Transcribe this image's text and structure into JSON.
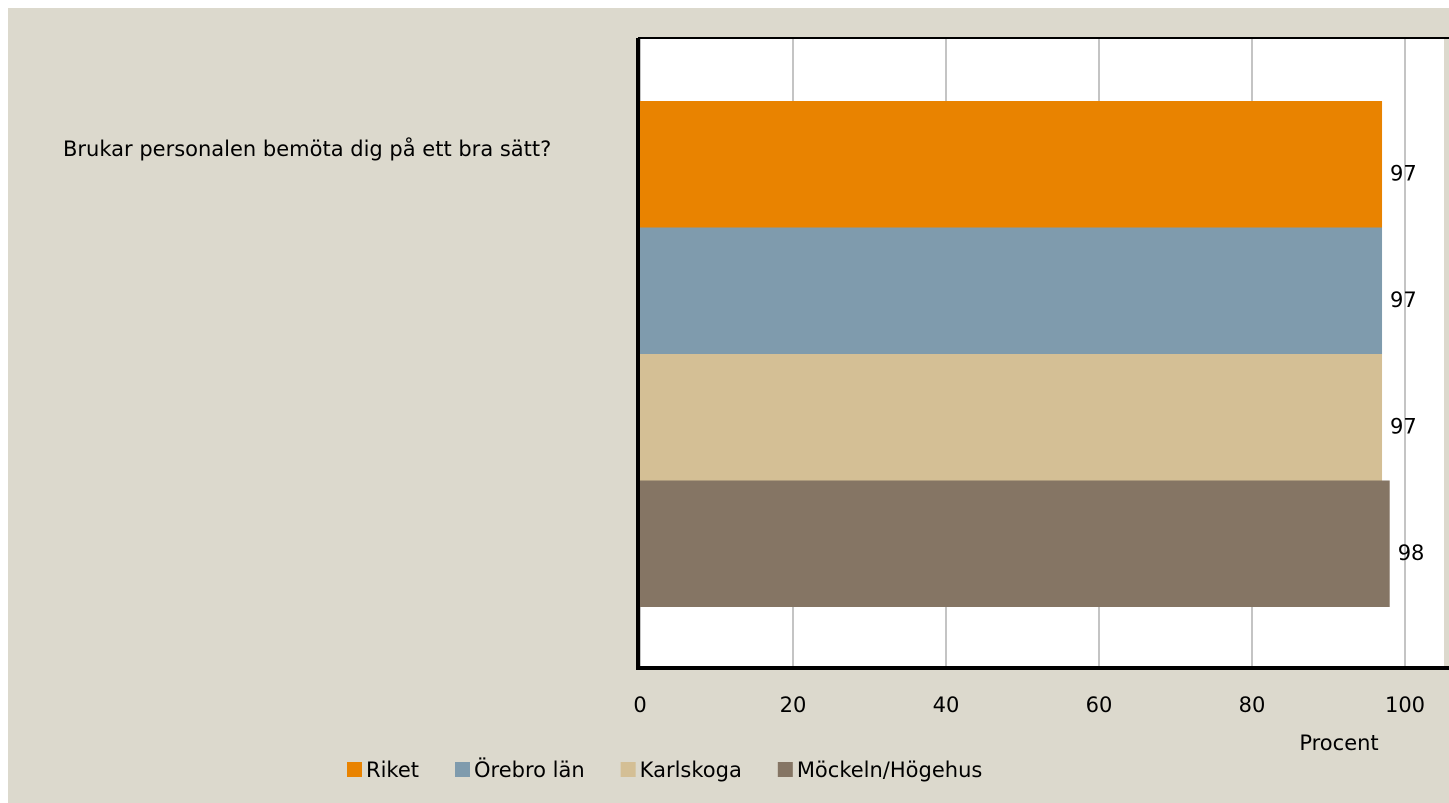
{
  "chart_data": {
    "type": "barh",
    "categories": [
      "Brukar personalen bemöta dig på ett bra sätt?"
    ],
    "series": [
      {
        "name": "Riket",
        "color": "#e98300",
        "values": [
          97
        ]
      },
      {
        "name": "Örebro län",
        "color": "#7f9bad",
        "values": [
          97
        ]
      },
      {
        "name": "Karlskoga",
        "color": "#d4bf95",
        "values": [
          97
        ]
      },
      {
        "name": "Möckeln/Högehus",
        "color": "#857564",
        "values": [
          98
        ]
      }
    ],
    "xlabel": "Procent",
    "xlim": [
      0,
      100
    ],
    "xticks": [
      0,
      20,
      40,
      60,
      80,
      100
    ],
    "grid": true,
    "legend": "bottom"
  }
}
